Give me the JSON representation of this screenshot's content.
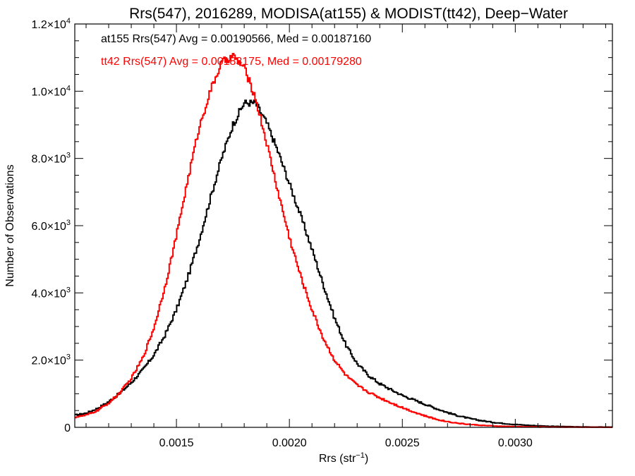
{
  "chart_data": {
    "type": "line",
    "step": true,
    "title": "Rrs(547), 2016289, MODISA(at155) & MODIST(tt42), Deep−Water",
    "xlabel_base": "Rrs (str",
    "xlabel_sup": "−1",
    "xlabel_end": ")",
    "ylabel": "Number of Observations",
    "xlim": [
      0.00105,
      0.00343
    ],
    "ylim": [
      0,
      12000
    ],
    "grid": false,
    "x_ticks": [
      {
        "value": 0.0015,
        "label": "0.0015"
      },
      {
        "value": 0.002,
        "label": "0.0020"
      },
      {
        "value": 0.0025,
        "label": "0.0025"
      },
      {
        "value": 0.003,
        "label": "0.0030"
      }
    ],
    "x_minor_step": 0.0001,
    "y_ticks": [
      {
        "value": 0,
        "base": "0",
        "exp": ""
      },
      {
        "value": 2000,
        "base": "2.0×10",
        "exp": "3"
      },
      {
        "value": 4000,
        "base": "4.0×10",
        "exp": "3"
      },
      {
        "value": 6000,
        "base": "6.0×10",
        "exp": "3"
      },
      {
        "value": 8000,
        "base": "8.0×10",
        "exp": "3"
      },
      {
        "value": 10000,
        "base": "1.0×10",
        "exp": "4"
      },
      {
        "value": 12000,
        "base": "1.2×10",
        "exp": "4"
      }
    ],
    "y_minor_step": 500,
    "annotations": [
      {
        "text": "at155 Rrs(547) Avg = 0.00190566, Med = 0.00187160",
        "color": "#000000"
      },
      {
        "text": "tt42 Rrs(547) Avg = 0.00183175, Med = 0.00179280",
        "color": "#ff0000"
      }
    ],
    "series": [
      {
        "color": "#000000",
        "points": [
          [
            0.00105,
            360
          ],
          [
            0.0011,
            420
          ],
          [
            0.00115,
            560
          ],
          [
            0.0012,
            760
          ],
          [
            0.00125,
            1020
          ],
          [
            0.0013,
            1330
          ],
          [
            0.00135,
            1700
          ],
          [
            0.0014,
            2150
          ],
          [
            0.00145,
            2750
          ],
          [
            0.0015,
            3500
          ],
          [
            0.00155,
            4450
          ],
          [
            0.0016,
            5550
          ],
          [
            0.00165,
            6800
          ],
          [
            0.0017,
            8000
          ],
          [
            0.00175,
            9000
          ],
          [
            0.0018,
            9650
          ],
          [
            0.00185,
            9650
          ],
          [
            0.0019,
            9050
          ],
          [
            0.00195,
            8200
          ],
          [
            0.002,
            7250
          ],
          [
            0.00205,
            6300
          ],
          [
            0.0021,
            5300
          ],
          [
            0.00215,
            4250
          ],
          [
            0.0022,
            3250
          ],
          [
            0.00225,
            2450
          ],
          [
            0.0023,
            1900
          ],
          [
            0.00235,
            1550
          ],
          [
            0.0024,
            1300
          ],
          [
            0.00245,
            1120
          ],
          [
            0.0025,
            950
          ],
          [
            0.00255,
            820
          ],
          [
            0.0026,
            690
          ],
          [
            0.00265,
            560
          ],
          [
            0.0027,
            440
          ],
          [
            0.00275,
            340
          ],
          [
            0.0028,
            260
          ],
          [
            0.00285,
            200
          ],
          [
            0.0029,
            150
          ],
          [
            0.00295,
            115
          ],
          [
            0.003,
            85
          ],
          [
            0.00305,
            62
          ],
          [
            0.0031,
            45
          ],
          [
            0.00315,
            33
          ],
          [
            0.0032,
            24
          ],
          [
            0.00325,
            18
          ],
          [
            0.0033,
            13
          ],
          [
            0.00335,
            10
          ],
          [
            0.00343,
            8
          ]
        ]
      },
      {
        "color": "#ff0000",
        "points": [
          [
            0.00105,
            300
          ],
          [
            0.0011,
            360
          ],
          [
            0.00115,
            500
          ],
          [
            0.0012,
            720
          ],
          [
            0.00125,
            1030
          ],
          [
            0.0013,
            1450
          ],
          [
            0.00135,
            2050
          ],
          [
            0.0014,
            2950
          ],
          [
            0.00145,
            4200
          ],
          [
            0.0015,
            5700
          ],
          [
            0.00155,
            7350
          ],
          [
            0.0016,
            8900
          ],
          [
            0.00165,
            10000
          ],
          [
            0.0017,
            10850
          ],
          [
            0.00175,
            11050
          ],
          [
            0.0018,
            10700
          ],
          [
            0.00185,
            9800
          ],
          [
            0.0019,
            8450
          ],
          [
            0.00195,
            7000
          ],
          [
            0.002,
            5650
          ],
          [
            0.00205,
            4500
          ],
          [
            0.0021,
            3500
          ],
          [
            0.00215,
            2650
          ],
          [
            0.0022,
            2000
          ],
          [
            0.00225,
            1550
          ],
          [
            0.0023,
            1250
          ],
          [
            0.00235,
            1050
          ],
          [
            0.0024,
            880
          ],
          [
            0.00245,
            730
          ],
          [
            0.0025,
            590
          ],
          [
            0.00255,
            460
          ],
          [
            0.0026,
            340
          ],
          [
            0.00265,
            240
          ],
          [
            0.0027,
            170
          ],
          [
            0.00275,
            120
          ],
          [
            0.0028,
            85
          ],
          [
            0.00285,
            60
          ],
          [
            0.0029,
            42
          ],
          [
            0.00295,
            30
          ],
          [
            0.003,
            21
          ],
          [
            0.00305,
            15
          ],
          [
            0.0031,
            11
          ],
          [
            0.00315,
            8
          ],
          [
            0.0032,
            6
          ],
          [
            0.00325,
            5
          ],
          [
            0.0033,
            4
          ],
          [
            0.00335,
            3
          ],
          [
            0.00343,
            2
          ]
        ]
      }
    ]
  }
}
